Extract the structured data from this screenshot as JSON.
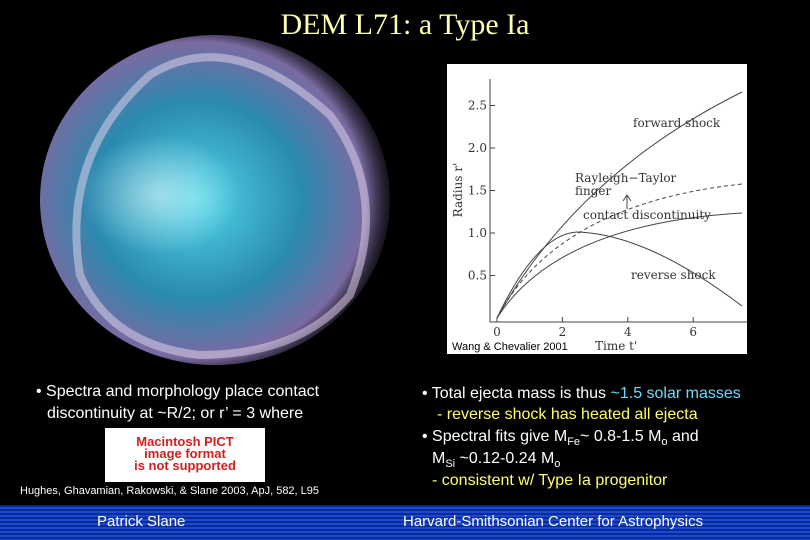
{
  "title": "DEM L71: a Type Ia",
  "plot": {
    "y_label": "Radius r'",
    "x_label": "Time t'",
    "yticks": [
      0.5,
      1.0,
      1.5,
      2.0,
      2.5
    ],
    "xticks": [
      0,
      2,
      4,
      6
    ],
    "labels": {
      "forward": "forward shock",
      "rt1": "Rayleigh−Taylor",
      "rt2": "finger",
      "contact": "contact discontinuity",
      "reverse": "reverse shock"
    },
    "credit": "Wang & Chevalier 2001"
  },
  "left": {
    "bullet_line1": "• Spectra and morphology place contact",
    "bullet_line2": "discontinuity at ~R/2; or r’ = 3 where",
    "placeholder": [
      "Macintosh PICT",
      "image format",
      "is not supported"
    ],
    "citation": "Hughes, Ghavamian, Rakowski, & Slane 2003, ApJ, 582, L95"
  },
  "right": {
    "b1_pre": "• Total ejecta mass is thus ",
    "b1_hl": "~1.5 solar masses",
    "sub1": "- reverse shock has heated all ejecta",
    "b2_pre": "• Spectral fits give M",
    "b2_fe": "Fe",
    "b2_mid": "~ 0.8-1.5 M",
    "b2_o1": "o",
    "b2_end": "  and",
    "b3_pre": "M",
    "b3_si": "Si",
    "b3_mid": " ~0.12-0.24 M",
    "b3_o": "o",
    "sub2": "- consistent w/ Type Ia progenitor"
  },
  "footer": {
    "author": "Patrick Slane",
    "org": "Harvard-Smithsonian Center for Astrophysics"
  }
}
